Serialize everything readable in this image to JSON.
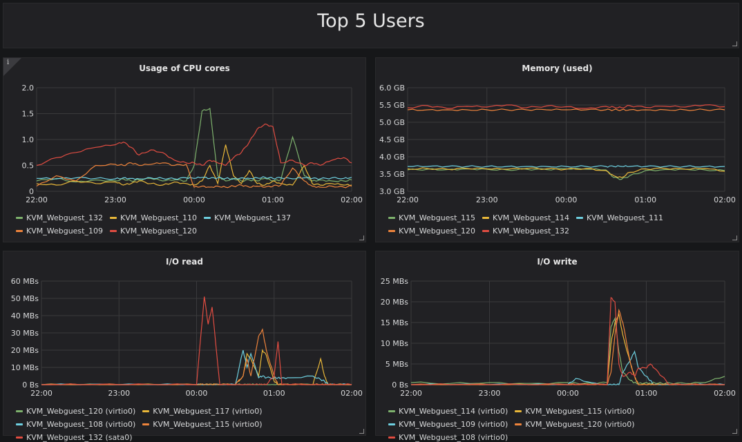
{
  "dashboard": {
    "title": "Top 5 Users"
  },
  "panels": [
    {
      "id": "cpu",
      "title": "Usage of CPU cores",
      "chart_data": {
        "type": "line",
        "title": "Usage of CPU cores",
        "x_ticks": [
          "22:00",
          "23:00",
          "00:00",
          "01:00",
          "02:00"
        ],
        "y_ticks": [
          "0",
          "0.5",
          "1.0",
          "1.5",
          "2.0"
        ],
        "ylim": [
          0,
          2.0
        ],
        "grid": true,
        "legend": "bottom",
        "x_time": [
          0,
          0.25,
          0.5,
          0.75,
          1.0,
          1.1,
          1.2,
          1.3,
          1.45,
          1.6,
          1.75,
          1.9,
          2.0,
          2.1,
          2.2,
          2.3,
          2.4,
          2.5,
          2.6,
          2.7,
          2.8,
          2.9,
          3.0,
          3.1,
          3.25,
          3.4,
          3.5,
          3.6,
          3.75,
          3.9,
          4.0
        ],
        "series": [
          {
            "name": "KVM_Webguest_132",
            "color": "#7eb26d",
            "values": [
              0.2,
              0.25,
              0.18,
              0.22,
              0.2,
              0.24,
              0.2,
              0.22,
              0.25,
              0.2,
              0.22,
              0.2,
              0.5,
              1.55,
              1.6,
              0.3,
              0.2,
              0.25,
              0.2,
              0.22,
              0.2,
              0.25,
              0.2,
              0.22,
              1.05,
              0.3,
              0.2,
              0.22,
              0.2,
              0.2,
              0.22
            ]
          },
          {
            "name": "KVM_Webguest_110",
            "color": "#eab839",
            "values": [
              0.15,
              0.12,
              0.2,
              0.15,
              0.18,
              0.12,
              0.15,
              0.2,
              0.15,
              0.12,
              0.18,
              0.15,
              0.12,
              0.2,
              0.5,
              0.15,
              0.9,
              0.3,
              0.15,
              0.4,
              0.15,
              0.12,
              0.2,
              0.15,
              0.12,
              0.5,
              0.15,
              0.12,
              0.15,
              0.12,
              0.12
            ]
          },
          {
            "name": "KVM_Webguest_137",
            "color": "#6ed0e0",
            "values": [
              0.25,
              0.24,
              0.26,
              0.25,
              0.24,
              0.26,
              0.25,
              0.24,
              0.26,
              0.25,
              0.24,
              0.26,
              0.25,
              0.27,
              0.25,
              0.26,
              0.25,
              0.24,
              0.26,
              0.25,
              0.26,
              0.27,
              0.25,
              0.26,
              0.24,
              0.26,
              0.25,
              0.24,
              0.26,
              0.25,
              0.27
            ]
          },
          {
            "name": "KVM_Webguest_109",
            "color": "#ef843c",
            "values": [
              0.1,
              0.3,
              0.2,
              0.5,
              0.52,
              0.5,
              0.55,
              0.5,
              0.52,
              0.55,
              0.5,
              0.52,
              0.08,
              0.1,
              0.08,
              0.1,
              0.08,
              0.1,
              0.12,
              0.08,
              0.1,
              0.08,
              0.1,
              0.12,
              0.45,
              0.2,
              0.1,
              0.08,
              0.1,
              0.08,
              0.1
            ]
          },
          {
            "name": "KVM_Webguest_120",
            "color": "#e24d42",
            "values": [
              0.5,
              0.65,
              0.75,
              0.85,
              0.9,
              0.95,
              0.85,
              0.7,
              0.8,
              0.75,
              0.6,
              0.55,
              0.55,
              0.5,
              0.6,
              0.55,
              0.5,
              0.65,
              0.75,
              0.95,
              1.2,
              1.3,
              1.25,
              0.55,
              0.6,
              0.5,
              0.55,
              0.5,
              0.6,
              0.65,
              0.55
            ]
          }
        ]
      }
    },
    {
      "id": "mem",
      "title": "Memory (used)",
      "chart_data": {
        "type": "line",
        "title": "Memory (used)",
        "x_ticks": [
          "22:00",
          "23:00",
          "00:00",
          "01:00",
          "02:00"
        ],
        "y_ticks": [
          "3.0 GB",
          "3.5 GB",
          "4.0 GB",
          "4.5 GB",
          "5.0 GB",
          "5.5 GB",
          "6.0 GB"
        ],
        "ylim": [
          3.0,
          6.0
        ],
        "grid": true,
        "legend": "bottom",
        "x_time": [
          0,
          0.25,
          0.5,
          0.75,
          1.0,
          1.25,
          1.5,
          1.75,
          2.0,
          2.25,
          2.5,
          2.6,
          2.7,
          2.8,
          3.0,
          3.25,
          3.5,
          3.75,
          4.0
        ],
        "series": [
          {
            "name": "KVM_Webguest_115",
            "color": "#7eb26d",
            "values": [
              3.62,
              3.64,
              3.63,
              3.65,
              3.64,
              3.62,
              3.64,
              3.63,
              3.65,
              3.64,
              3.62,
              3.4,
              3.35,
              3.45,
              3.6,
              3.63,
              3.64,
              3.62,
              3.6
            ]
          },
          {
            "name": "KVM_Webguest_114",
            "color": "#eab839",
            "values": [
              3.65,
              3.66,
              3.64,
              3.66,
              3.65,
              3.64,
              3.66,
              3.65,
              3.64,
              3.66,
              3.6,
              3.45,
              3.4,
              3.55,
              3.65,
              3.66,
              3.64,
              3.66,
              3.58
            ]
          },
          {
            "name": "KVM_Webguest_111",
            "color": "#6ed0e0",
            "values": [
              3.72,
              3.72,
              3.72,
              3.72,
              3.72,
              3.72,
              3.72,
              3.72,
              3.72,
              3.72,
              3.72,
              3.72,
              3.72,
              3.72,
              3.72,
              3.72,
              3.72,
              3.72,
              3.72
            ]
          },
          {
            "name": "KVM_Webguest_120",
            "color": "#ef843c",
            "values": [
              5.36,
              5.36,
              5.36,
              5.36,
              5.36,
              5.36,
              5.36,
              5.36,
              5.36,
              5.36,
              5.36,
              5.36,
              5.36,
              5.36,
              5.36,
              5.36,
              5.36,
              5.36,
              5.36
            ]
          },
          {
            "name": "KVM_Webguest_132",
            "color": "#e24d42",
            "values": [
              5.42,
              5.48,
              5.4,
              5.46,
              5.44,
              5.5,
              5.42,
              5.47,
              5.45,
              5.4,
              5.46,
              5.44,
              5.42,
              5.48,
              5.43,
              5.46,
              5.44,
              5.5,
              5.45
            ]
          }
        ]
      }
    },
    {
      "id": "ioread",
      "title": "I/O read",
      "chart_data": {
        "type": "line",
        "title": "I/O read",
        "x_ticks": [
          "22:00",
          "23:00",
          "00:00",
          "01:00",
          "02:00"
        ],
        "y_ticks": [
          "0 Bs",
          "10 MBs",
          "20 MBs",
          "30 MBs",
          "40 MBs",
          "50 MBs",
          "60 MBs"
        ],
        "ylim": [
          0,
          60
        ],
        "grid": true,
        "legend": "bottom",
        "x_time": [
          0,
          0.5,
          1.0,
          1.5,
          2.0,
          2.1,
          2.15,
          2.2,
          2.3,
          2.5,
          2.6,
          2.65,
          2.7,
          2.8,
          2.85,
          2.9,
          3.0,
          3.05,
          3.1,
          3.2,
          3.5,
          3.6,
          3.65,
          3.7,
          3.8,
          4.0
        ],
        "series": [
          {
            "name": "KVM_Webguest_120 (virtio0)",
            "color": "#7eb26d",
            "values": [
              0,
              0,
              0,
              0,
              0,
              0,
              0,
              0,
              0,
              0,
              0,
              0,
              0,
              0,
              0,
              0,
              0,
              0,
              0,
              0,
              0,
              0,
              0,
              0,
              0,
              0
            ]
          },
          {
            "name": "KVM_Webguest_117 (virtio0)",
            "color": "#eab839",
            "values": [
              0,
              0,
              0,
              0,
              0,
              0,
              0,
              0,
              0,
              0,
              5,
              18,
              15,
              5,
              20,
              17,
              2,
              0,
              0,
              0,
              0,
              15,
              5,
              0,
              0,
              0
            ]
          },
          {
            "name": "KVM_Webguest_108 (virtio0)",
            "color": "#6ed0e0",
            "values": [
              0,
              0,
              0,
              0,
              0,
              0,
              0,
              0,
              0,
              0,
              20,
              10,
              18,
              4,
              5,
              4,
              4,
              4,
              4,
              4,
              5,
              3,
              2,
              0,
              0,
              0
            ]
          },
          {
            "name": "KVM_Webguest_115 (virtio0)",
            "color": "#ef843c",
            "values": [
              0,
              0,
              0,
              0,
              0,
              0,
              0,
              0,
              0,
              0,
              5,
              15,
              5,
              28,
              32,
              20,
              5,
              0,
              0,
              0,
              0,
              0,
              0,
              0,
              0,
              0
            ]
          },
          {
            "name": "KVM_Webguest_132 (sata0)",
            "color": "#e24d42",
            "values": [
              0,
              0,
              0,
              0,
              0,
              51,
              35,
              45,
              0,
              0,
              0,
              0,
              0,
              0,
              0,
              0,
              5,
              25,
              0,
              0,
              0,
              0,
              0,
              0,
              0,
              0
            ]
          }
        ]
      }
    },
    {
      "id": "iowrite",
      "title": "I/O write",
      "chart_data": {
        "type": "line",
        "title": "I/O write",
        "x_ticks": [
          "22:00",
          "23:00",
          "00:00",
          "01:00",
          "02:00"
        ],
        "y_ticks": [
          "0 Bs",
          "5 MBs",
          "10 MBs",
          "15 MBs",
          "20 MBs",
          "25 MBs"
        ],
        "ylim": [
          0,
          25
        ],
        "grid": true,
        "legend": "bottom",
        "x_time": [
          0,
          0.5,
          1.0,
          1.5,
          2.0,
          2.1,
          2.3,
          2.5,
          2.55,
          2.6,
          2.65,
          2.7,
          2.8,
          2.85,
          2.9,
          3.0,
          3.05,
          3.1,
          3.2,
          3.3,
          3.5,
          3.75,
          4.0
        ],
        "series": [
          {
            "name": "KVM_Webguest_114 (virtio0)",
            "color": "#7eb26d",
            "values": [
              0.5,
              0.3,
              0.5,
              0.3,
              0.5,
              0.4,
              0.3,
              0.5,
              14,
              16,
              8,
              3,
              1,
              0.5,
              0.3,
              0.5,
              0.3,
              0.5,
              0.3,
              0.4,
              0.3,
              0.5,
              2
            ]
          },
          {
            "name": "KVM_Webguest_115 (virtio0)",
            "color": "#eab839",
            "values": [
              0,
              0,
              0,
              0,
              0,
              0,
              0,
              0,
              10,
              15,
              17,
              12,
              5,
              2,
              0,
              0,
              0,
              0,
              0,
              0,
              0,
              0,
              0
            ]
          },
          {
            "name": "KVM_Webguest_109 (virtio0)",
            "color": "#6ed0e0",
            "values": [
              0,
              0,
              0,
              0,
              0,
              1.5,
              0.5,
              0,
              0,
              0,
              0,
              3,
              6,
              8,
              4,
              2,
              1,
              0,
              0,
              0,
              0,
              0,
              0
            ]
          },
          {
            "name": "KVM_Webguest_120 (virtio0)",
            "color": "#ef843c",
            "values": [
              0,
              0,
              0,
              0,
              0,
              0,
              0,
              0,
              3,
              12,
              18,
              15,
              5,
              2,
              0,
              0,
              0,
              0,
              0,
              0,
              0,
              0,
              0
            ]
          },
          {
            "name": "KVM_Webguest_108 (virtio0)",
            "color": "#e24d42",
            "values": [
              0,
              0,
              0,
              0,
              0,
              0,
              0,
              0,
              21,
              20,
              5,
              2,
              3,
              2,
              4,
              4,
              5,
              4,
              2,
              0,
              0,
              0,
              0
            ]
          }
        ]
      }
    }
  ]
}
